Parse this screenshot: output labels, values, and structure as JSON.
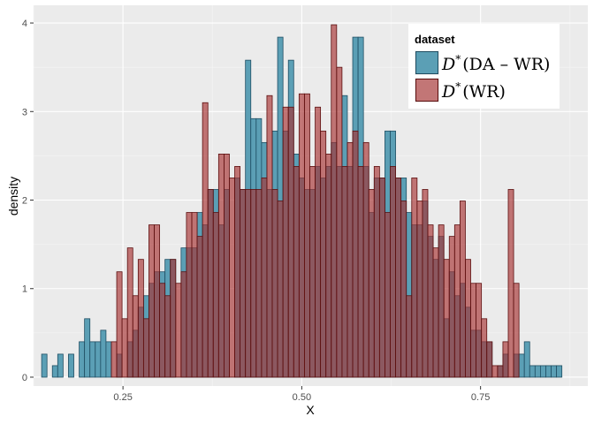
{
  "chart_data": {
    "type": "bar",
    "xlabel": "X",
    "ylabel": "density",
    "xlim": [
      0.125,
      0.9
    ],
    "ylim": [
      -0.1,
      4.2
    ],
    "xticks": [
      0.25,
      0.5,
      0.75
    ],
    "xtick_labels": [
      "0.25",
      "0.50",
      "0.75"
    ],
    "yticks": [
      0,
      1,
      2,
      3,
      4
    ],
    "ytick_labels": [
      "0",
      "1",
      "2",
      "3",
      "4"
    ],
    "bin_width": 0.0075,
    "grid": true,
    "legend_position": "top-right",
    "legend_title": "dataset",
    "series": [
      {
        "name": "D*(DA – WR)",
        "label_main": "D",
        "label_sup": "*",
        "label_rest": "(DA – WR)",
        "fill": "#5b9fb5",
        "stroke": "#1f4e63",
        "bins": [
          [
            0.14,
            0.26
          ],
          [
            0.155,
            0.13
          ],
          [
            0.1625,
            0.26
          ],
          [
            0.1775,
            0.26
          ],
          [
            0.1925,
            0.4
          ],
          [
            0.2,
            0.66
          ],
          [
            0.2075,
            0.4
          ],
          [
            0.215,
            0.4
          ],
          [
            0.2225,
            0.53
          ],
          [
            0.23,
            0.4
          ],
          [
            0.245,
            0.26
          ],
          [
            0.26,
            0.4
          ],
          [
            0.2675,
            0.53
          ],
          [
            0.275,
            0.79
          ],
          [
            0.2825,
            0.92
          ],
          [
            0.29,
            1.06
          ],
          [
            0.2975,
            1.19
          ],
          [
            0.305,
            1.19
          ],
          [
            0.3125,
            1.33
          ],
          [
            0.32,
            1.33
          ],
          [
            0.335,
            1.46
          ],
          [
            0.3425,
            1.46
          ],
          [
            0.35,
            1.46
          ],
          [
            0.3575,
            1.86
          ],
          [
            0.365,
            1.72
          ],
          [
            0.3725,
            2.12
          ],
          [
            0.38,
            2.12
          ],
          [
            0.3875,
            1.72
          ],
          [
            0.395,
            2.12
          ],
          [
            0.41,
            2.25
          ],
          [
            0.4175,
            2.12
          ],
          [
            0.425,
            3.58
          ],
          [
            0.4325,
            2.92
          ],
          [
            0.44,
            2.92
          ],
          [
            0.4475,
            2.65
          ],
          [
            0.455,
            2.12
          ],
          [
            0.4625,
            2.78
          ],
          [
            0.47,
            3.84
          ],
          [
            0.4775,
            2.78
          ],
          [
            0.485,
            3.58
          ],
          [
            0.4925,
            2.52
          ],
          [
            0.5,
            2.25
          ],
          [
            0.5075,
            2.12
          ],
          [
            0.515,
            2.12
          ],
          [
            0.5225,
            2.38
          ],
          [
            0.53,
            2.25
          ],
          [
            0.5375,
            2.38
          ],
          [
            0.545,
            2.65
          ],
          [
            0.5525,
            2.38
          ],
          [
            0.56,
            3.18
          ],
          [
            0.5675,
            2.38
          ],
          [
            0.575,
            3.84
          ],
          [
            0.5825,
            3.84
          ],
          [
            0.59,
            2.38
          ],
          [
            0.5975,
            1.86
          ],
          [
            0.605,
            2.25
          ],
          [
            0.6125,
            2.25
          ],
          [
            0.62,
            2.78
          ],
          [
            0.6275,
            2.78
          ],
          [
            0.635,
            2.25
          ],
          [
            0.6425,
            2.25
          ],
          [
            0.65,
            1.86
          ],
          [
            0.6575,
            1.72
          ],
          [
            0.665,
            1.72
          ],
          [
            0.6725,
            1.99
          ],
          [
            0.68,
            1.59
          ],
          [
            0.6875,
            1.33
          ],
          [
            0.695,
            1.59
          ],
          [
            0.7025,
            0.66
          ],
          [
            0.71,
            1.19
          ],
          [
            0.7175,
            0.92
          ],
          [
            0.725,
            1.06
          ],
          [
            0.7325,
            0.79
          ],
          [
            0.74,
            0.53
          ],
          [
            0.7475,
            0.53
          ],
          [
            0.755,
            0.4
          ],
          [
            0.7625,
            0.4
          ],
          [
            0.7775,
            0.13
          ],
          [
            0.785,
            0.26
          ],
          [
            0.8,
            0.26
          ],
          [
            0.8075,
            0.26
          ],
          [
            0.815,
            0.4
          ],
          [
            0.8225,
            0.13
          ],
          [
            0.83,
            0.13
          ],
          [
            0.8375,
            0.13
          ],
          [
            0.845,
            0.13
          ],
          [
            0.8525,
            0.13
          ],
          [
            0.86,
            0.13
          ]
        ]
      },
      {
        "name": "D*(WR)",
        "label_main": "D",
        "label_sup": "*",
        "label_rest": "(WR)",
        "fill": "#a83232",
        "fill_opacity": 0.65,
        "stroke": "#5c0f0f",
        "bins": [
          [
            0.2375,
            0.4
          ],
          [
            0.245,
            1.19
          ],
          [
            0.2525,
            0.66
          ],
          [
            0.26,
            1.46
          ],
          [
            0.2675,
            0.92
          ],
          [
            0.275,
            1.33
          ],
          [
            0.2825,
            0.66
          ],
          [
            0.29,
            1.72
          ],
          [
            0.2975,
            1.72
          ],
          [
            0.305,
            1.06
          ],
          [
            0.3125,
            0.92
          ],
          [
            0.32,
            1.33
          ],
          [
            0.3275,
            1.06
          ],
          [
            0.335,
            1.19
          ],
          [
            0.3425,
            1.86
          ],
          [
            0.35,
            1.86
          ],
          [
            0.3575,
            1.59
          ],
          [
            0.365,
            3.1
          ],
          [
            0.3725,
            2.12
          ],
          [
            0.38,
            1.86
          ],
          [
            0.3875,
            2.52
          ],
          [
            0.395,
            2.52
          ],
          [
            0.4025,
            2.25
          ],
          [
            0.41,
            2.38
          ],
          [
            0.4175,
            2.12
          ],
          [
            0.425,
            2.12
          ],
          [
            0.4325,
            2.12
          ],
          [
            0.44,
            2.12
          ],
          [
            0.4475,
            2.25
          ],
          [
            0.455,
            3.18
          ],
          [
            0.4625,
            2.12
          ],
          [
            0.47,
            1.99
          ],
          [
            0.4775,
            3.05
          ],
          [
            0.485,
            3.05
          ],
          [
            0.4925,
            2.38
          ],
          [
            0.5,
            3.2
          ],
          [
            0.5075,
            3.2
          ],
          [
            0.515,
            2.38
          ],
          [
            0.5225,
            3.05
          ],
          [
            0.53,
            2.78
          ],
          [
            0.5375,
            2.52
          ],
          [
            0.545,
            3.98
          ],
          [
            0.5525,
            3.5
          ],
          [
            0.56,
            2.38
          ],
          [
            0.5675,
            2.65
          ],
          [
            0.575,
            2.78
          ],
          [
            0.5825,
            2.38
          ],
          [
            0.59,
            2.65
          ],
          [
            0.5975,
            2.12
          ],
          [
            0.605,
            2.38
          ],
          [
            0.6125,
            2.25
          ],
          [
            0.62,
            1.86
          ],
          [
            0.6275,
            2.38
          ],
          [
            0.635,
            2.25
          ],
          [
            0.6425,
            1.99
          ],
          [
            0.65,
            0.92
          ],
          [
            0.6575,
            2.25
          ],
          [
            0.665,
            1.99
          ],
          [
            0.6725,
            2.12
          ],
          [
            0.68,
            1.72
          ],
          [
            0.6875,
            1.46
          ],
          [
            0.695,
            1.72
          ],
          [
            0.7025,
            1.33
          ],
          [
            0.71,
            1.59
          ],
          [
            0.7175,
            1.72
          ],
          [
            0.725,
            1.99
          ],
          [
            0.7325,
            1.33
          ],
          [
            0.74,
            1.06
          ],
          [
            0.7475,
            1.06
          ],
          [
            0.755,
            0.66
          ],
          [
            0.7625,
            0.4
          ],
          [
            0.77,
            0.13
          ],
          [
            0.7775,
            0.13
          ],
          [
            0.785,
            0.4
          ],
          [
            0.7925,
            2.12
          ],
          [
            0.8,
            1.06
          ]
        ]
      }
    ]
  }
}
